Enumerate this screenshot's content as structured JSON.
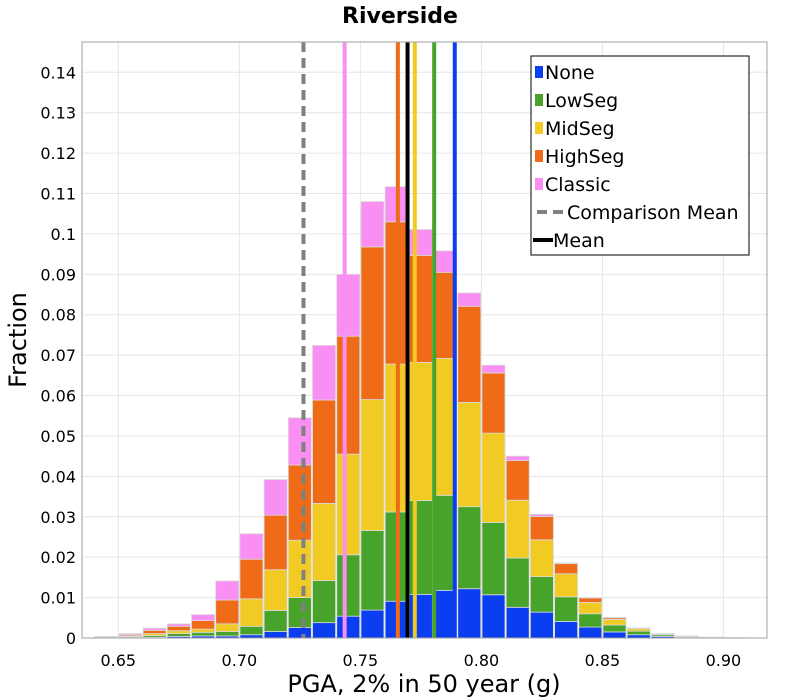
{
  "chart_data": {
    "type": "bar",
    "stacked": true,
    "title": "Riverside",
    "xlabel": "PGA, 2% in 50 year (g)",
    "ylabel": "Fraction",
    "xlim": [
      0.635,
      0.918
    ],
    "ylim": [
      0,
      0.1475
    ],
    "x_ticks": [
      "0.65",
      "0.70",
      "0.75",
      "0.80",
      "0.85",
      "0.90"
    ],
    "y_ticks": [
      "0",
      "0.01",
      "0.02",
      "0.03",
      "0.04",
      "0.05",
      "0.06",
      "0.07",
      "0.08",
      "0.09",
      "0.1",
      "0.11",
      "0.12",
      "0.13",
      "0.14"
    ],
    "bin_width": 0.0095,
    "x": [
      0.645,
      0.655,
      0.665,
      0.675,
      0.685,
      0.695,
      0.705,
      0.715,
      0.725,
      0.735,
      0.745,
      0.755,
      0.765,
      0.775,
      0.785,
      0.795,
      0.805,
      0.815,
      0.825,
      0.835,
      0.845,
      0.855,
      0.865,
      0.875,
      0.885,
      0.895,
      0.905
    ],
    "series": [
      {
        "name": "None",
        "color": "#0a3ef0",
        "values": [
          0.0001,
          0.0001,
          0.0002,
          0.0004,
          0.0005,
          0.0005,
          0.0008,
          0.0016,
          0.0026,
          0.0038,
          0.0054,
          0.0069,
          0.0091,
          0.0108,
          0.0118,
          0.0122,
          0.0107,
          0.0076,
          0.0064,
          0.0041,
          0.0027,
          0.0015,
          0.0008,
          0.0004,
          0.0002,
          0.0001,
          0.0001
        ]
      },
      {
        "name": "LowSeg",
        "color": "#47a32a",
        "values": [
          0.0001,
          0.0002,
          0.0004,
          0.0007,
          0.0009,
          0.0011,
          0.0021,
          0.0052,
          0.0074,
          0.0104,
          0.0152,
          0.0197,
          0.0221,
          0.0232,
          0.0235,
          0.0203,
          0.0179,
          0.0122,
          0.0088,
          0.0061,
          0.0033,
          0.0017,
          0.0009,
          0.0004,
          0.0002,
          0.0001,
          0.0
        ]
      },
      {
        "name": "MidSeg",
        "color": "#f1cb24",
        "values": [
          0.0001,
          0.0002,
          0.0005,
          0.0007,
          0.0008,
          0.0019,
          0.0068,
          0.0101,
          0.0142,
          0.0191,
          0.0249,
          0.0324,
          0.0366,
          0.0342,
          0.0339,
          0.0258,
          0.0221,
          0.0143,
          0.0091,
          0.0057,
          0.0028,
          0.0014,
          0.0006,
          0.0002,
          0.0001,
          0.0,
          0.0
        ]
      },
      {
        "name": "HighSeg",
        "color": "#ef6b17",
        "values": [
          0.0001,
          0.0003,
          0.0008,
          0.0011,
          0.0021,
          0.0059,
          0.0098,
          0.0135,
          0.0186,
          0.0256,
          0.0292,
          0.0378,
          0.0352,
          0.0265,
          0.0213,
          0.0238,
          0.0149,
          0.0098,
          0.0058,
          0.0025,
          0.0011,
          0.0004,
          0.0002,
          0.0001,
          0.0,
          0.0,
          0.0
        ]
      },
      {
        "name": "Classic",
        "color": "#f98ef3",
        "values": [
          0.0,
          0.0003,
          0.0005,
          0.0006,
          0.0015,
          0.0047,
          0.0063,
          0.0088,
          0.0117,
          0.0135,
          0.0153,
          0.0112,
          0.0087,
          0.0064,
          0.0053,
          0.0033,
          0.0019,
          0.0011,
          0.0005,
          0.0002,
          0.0001,
          0.0001,
          0.0,
          0.0,
          0.0,
          0.0,
          0.0
        ]
      }
    ],
    "vlines": [
      {
        "name": "None",
        "x": 0.789,
        "color": "#0a3ef0",
        "style": "solid"
      },
      {
        "name": "LowSeg",
        "x": 0.7805,
        "color": "#47a32a",
        "style": "solid"
      },
      {
        "name": "MidSeg",
        "x": 0.7725,
        "color": "#f1cb24",
        "style": "solid"
      },
      {
        "name": "HighSeg",
        "x": 0.7655,
        "color": "#ef6b17",
        "style": "solid"
      },
      {
        "name": "Classic",
        "x": 0.7435,
        "color": "#f98ef3",
        "style": "solid"
      },
      {
        "name": "Comparison Mean",
        "x": 0.7265,
        "color": "#808080",
        "style": "dashed"
      },
      {
        "name": "Mean",
        "x": 0.7695,
        "color": "#000000",
        "style": "solid"
      }
    ],
    "legend": {
      "position": "top-right",
      "entries": [
        {
          "label": "None",
          "kind": "swatch",
          "color": "#0a3ef0"
        },
        {
          "label": "LowSeg",
          "kind": "swatch",
          "color": "#47a32a"
        },
        {
          "label": "MidSeg",
          "kind": "swatch",
          "color": "#f1cb24"
        },
        {
          "label": "HighSeg",
          "kind": "swatch",
          "color": "#ef6b17"
        },
        {
          "label": "Classic",
          "kind": "swatch",
          "color": "#f98ef3"
        },
        {
          "label": "Comparison Mean",
          "kind": "dashed-line",
          "color": "#808080"
        },
        {
          "label": "Mean",
          "kind": "solid-line",
          "color": "#000000"
        }
      ]
    },
    "grid": true
  }
}
